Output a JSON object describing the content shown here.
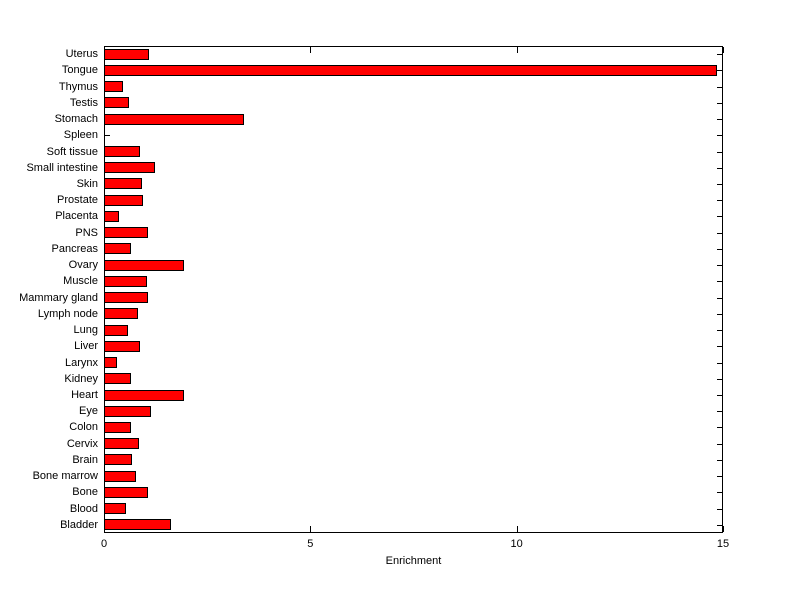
{
  "chart_data": {
    "type": "bar",
    "orientation": "horizontal",
    "title": "",
    "xlabel": "Enrichment",
    "ylabel": "",
    "xlim": [
      0,
      15
    ],
    "xticks": [
      0,
      5,
      10,
      15
    ],
    "grid": false,
    "legend": null,
    "bar_color": "#ff0000",
    "bar_edge_color": "#000000",
    "categories": [
      "Uterus",
      "Tongue",
      "Thymus",
      "Testis",
      "Stomach",
      "Spleen",
      "Soft tissue",
      "Small intestine",
      "Skin",
      "Prostate",
      "Placenta",
      "PNS",
      "Pancreas",
      "Ovary",
      "Muscle",
      "Mammary gland",
      "Lymph node",
      "Lung",
      "Liver",
      "Larynx",
      "Kidney",
      "Heart",
      "Eye",
      "Colon",
      "Cervix",
      "Brain",
      "Bone marrow",
      "Bone",
      "Blood",
      "Bladder"
    ],
    "values": [
      1.06,
      14.83,
      0.44,
      0.58,
      3.36,
      0,
      0.85,
      1.21,
      0.89,
      0.92,
      0.34,
      1.04,
      0.63,
      1.91,
      1.01,
      1.04,
      0.79,
      0.56,
      0.85,
      0.29,
      0.63,
      1.91,
      1.12,
      0.62,
      0.82,
      0.66,
      0.76,
      1.03,
      0.51,
      1.59
    ]
  }
}
